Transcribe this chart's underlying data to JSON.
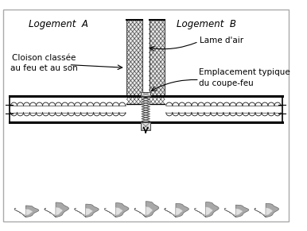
{
  "bg_color": "#ffffff",
  "border_color": "#999999",
  "label_logement_A": "Logement  A",
  "label_logement_B": "Logement  B",
  "label_lame_air": "Lame d'air",
  "label_cloison": "Cloison classée\nau feu et au son",
  "label_emplacement": "Emplacement typique\ndu coupe-feu",
  "annotation_fontsize": 7.5,
  "fig_width": 3.86,
  "fig_height": 2.91,
  "dpi": 100
}
